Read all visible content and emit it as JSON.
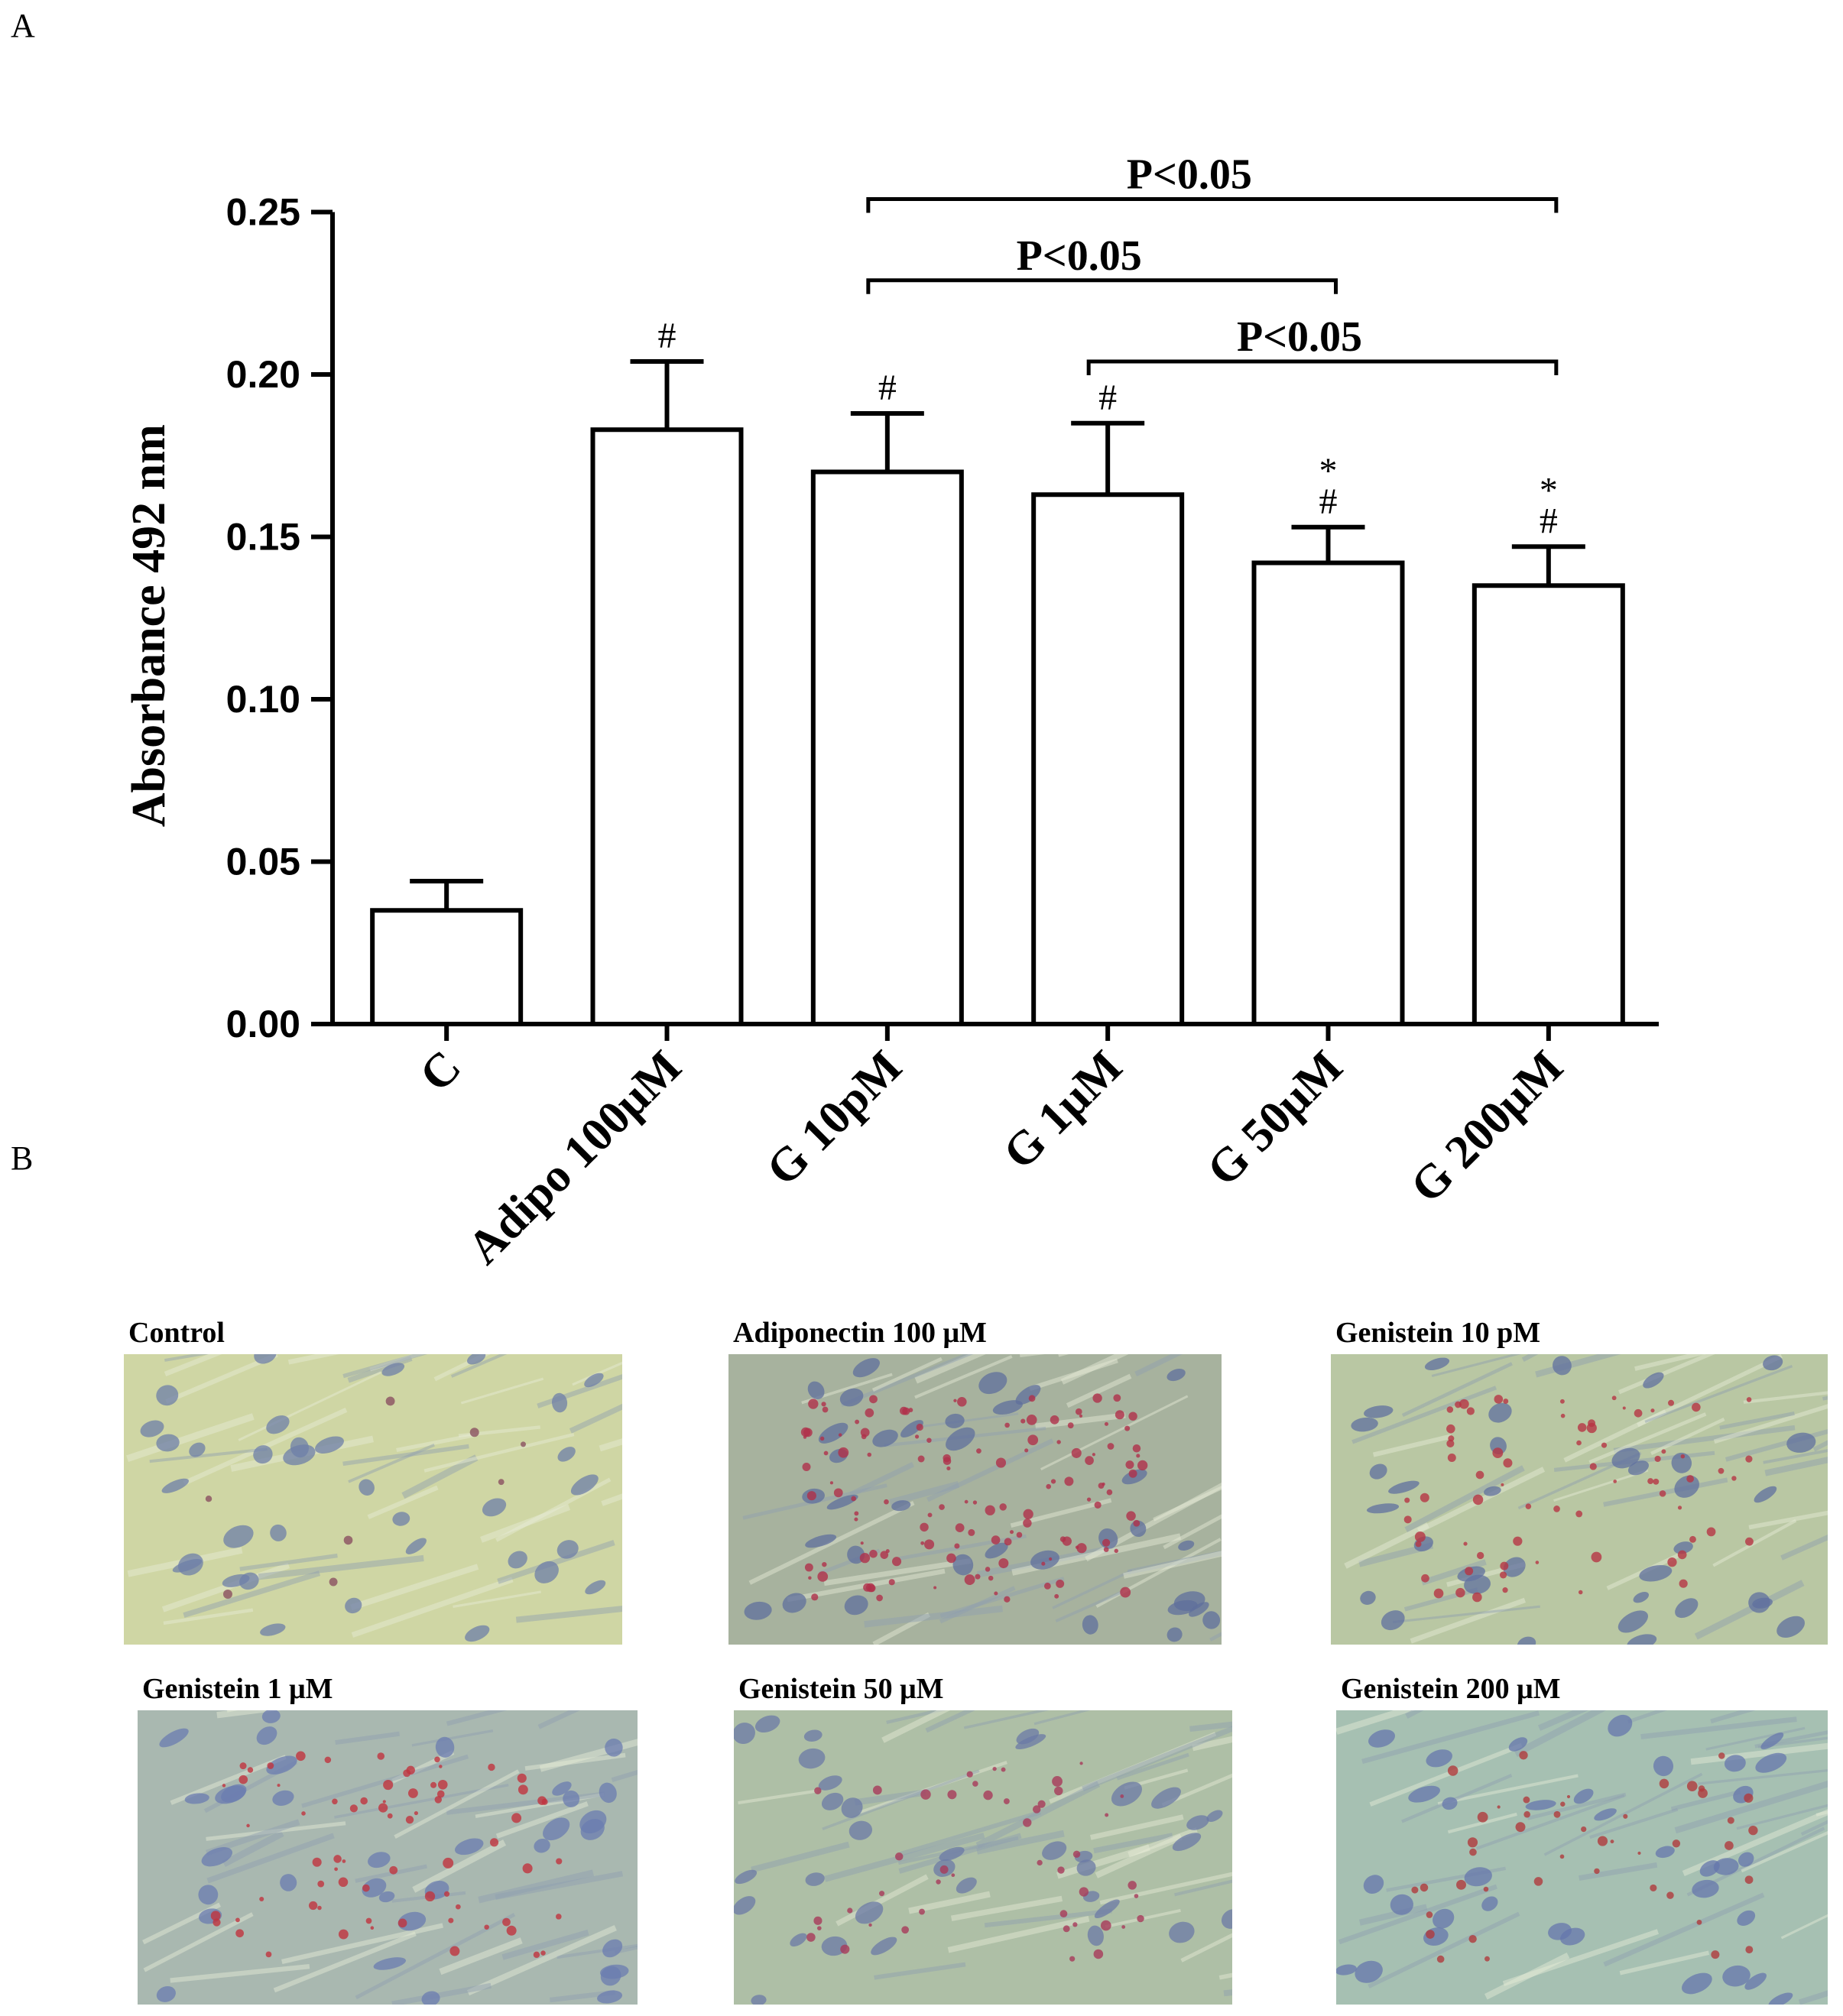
{
  "panel_labels": {
    "a": "A",
    "b": "B"
  },
  "chart_data": {
    "type": "bar",
    "title": "",
    "xlabel": "",
    "ylabel": "Absorbance 492 nm",
    "ylim": [
      0,
      0.25
    ],
    "yticks": [
      0.0,
      0.05,
      0.1,
      0.15,
      0.2,
      0.25
    ],
    "ytick_labels": [
      "0.00",
      "0.05",
      "0.10",
      "0.15",
      "0.20",
      "0.25"
    ],
    "categories": [
      "C",
      "Adipo 100μM",
      "G 10pM",
      "G 1μM",
      "G 50μM",
      "G 200μM"
    ],
    "values": [
      0.035,
      0.183,
      0.17,
      0.163,
      0.142,
      0.135
    ],
    "errors": [
      0.009,
      0.021,
      0.018,
      0.022,
      0.011,
      0.012
    ],
    "bar_markers": [
      [],
      [
        "#"
      ],
      [
        "#"
      ],
      [
        "#"
      ],
      [
        "*",
        "#"
      ],
      [
        "*",
        "#"
      ]
    ],
    "significance": [
      {
        "from": 2,
        "to": 5,
        "label": "P<0.05",
        "y": 0.254
      },
      {
        "from": 2,
        "to": 4,
        "label": "P<0.05",
        "y": 0.229
      },
      {
        "from": 3,
        "to": 5,
        "label": "P<0.05",
        "y": 0.204
      }
    ],
    "grid": false,
    "legend": "none"
  },
  "micrographs": [
    {
      "label": "Control",
      "stain": "low",
      "colors": {
        "bg": "#cfd6a4",
        "cell": "#6d7fa8",
        "dot": "#8a5060"
      }
    },
    {
      "label": "Adiponectin 100 μM",
      "stain": "high",
      "colors": {
        "bg": "#a7b29e",
        "cell": "#5f6f9c",
        "dot": "#b0304a"
      }
    },
    {
      "label": "Genistein 10 pM",
      "stain": "medium",
      "colors": {
        "bg": "#b9c7a3",
        "cell": "#60709f",
        "dot": "#b73443"
      }
    },
    {
      "label": "Genistein 1 μM",
      "stain": "medium",
      "colors": {
        "bg": "#a9b8b0",
        "cell": "#6b7cb0",
        "dot": "#c0333f"
      }
    },
    {
      "label": "Genistein 50 μM",
      "stain": "medium-low",
      "colors": {
        "bg": "#aebfa6",
        "cell": "#6b7aa6",
        "dot": "#a83a5a"
      }
    },
    {
      "label": "Genistein 200 μM",
      "stain": "medium-low",
      "colors": {
        "bg": "#a6c0b2",
        "cell": "#6677ac",
        "dot": "#b03a3c"
      }
    }
  ]
}
